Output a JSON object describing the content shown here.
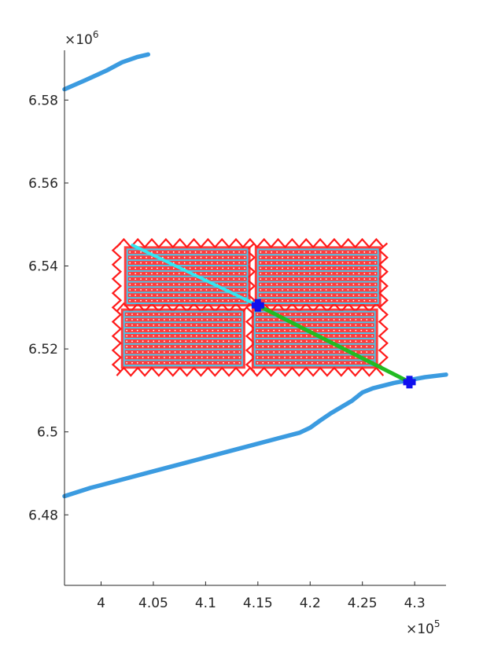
{
  "chart_data": {
    "type": "line",
    "title": "",
    "xlabel": "",
    "ylabel": "",
    "x_scale_label": "×10^5",
    "y_scale_label": "×10^6",
    "x_scale_base": "×10",
    "x_scale_exp": "5",
    "y_scale_base": "×10",
    "y_scale_exp": "6",
    "xlim": [
      3.965,
      4.33
    ],
    "ylim": [
      6.463,
      6.592
    ],
    "x_ticks": [
      4,
      4.05,
      4.1,
      4.15,
      4.2,
      4.25,
      4.3
    ],
    "x_tick_labels": [
      "4",
      "4.05",
      "4.1",
      "4.15",
      "4.2",
      "4.25",
      "4.3"
    ],
    "y_ticks": [
      6.48,
      6.5,
      6.52,
      6.54,
      6.56,
      6.58
    ],
    "y_tick_labels": [
      "6.48",
      "6.5",
      "6.52",
      "6.54",
      "6.56",
      "6.58"
    ],
    "grid": false,
    "colors": {
      "coastline": "#3b9be0",
      "boundary": "#ff1a1a",
      "field_lines": "#4fc3e6",
      "transit_cyan": "#33e6f0",
      "transit_green": "#22bb22",
      "marker": "#1010ee",
      "dots": "#ffffff"
    },
    "series": [
      {
        "role": "coastline-lower",
        "x": [
          3.965,
          3.99,
          4.02,
          4.05,
          4.08,
          4.11,
          4.14,
          4.17,
          4.19,
          4.2,
          4.21,
          4.22,
          4.24,
          4.25,
          4.26,
          4.28,
          4.295,
          4.31,
          4.33
        ],
        "y": [
          6.4845,
          6.4865,
          6.4885,
          6.4905,
          6.4925,
          6.4945,
          6.4965,
          6.4985,
          6.4998,
          6.501,
          6.5028,
          6.5045,
          6.5075,
          6.5095,
          6.5105,
          6.5118,
          6.5125,
          6.5132,
          6.5138
        ]
      },
      {
        "role": "coastline-upper",
        "x": [
          3.965,
          3.985,
          4.005,
          4.02,
          4.035,
          4.045
        ],
        "y": [
          6.5826,
          6.5848,
          6.5871,
          6.5891,
          6.5904,
          6.591
        ]
      },
      {
        "role": "transit-cyan",
        "x": [
          4.03,
          4.15
        ],
        "y": [
          6.545,
          6.5305
        ]
      },
      {
        "role": "transit-green",
        "x": [
          4.15,
          4.295
        ],
        "y": [
          6.5305,
          6.512
        ]
      }
    ],
    "fields": [
      {
        "x0": 4.025,
        "x1": 4.14,
        "y0": 6.531,
        "y1": 6.544,
        "lines": 11
      },
      {
        "x0": 4.022,
        "x1": 4.135,
        "y0": 6.516,
        "y1": 6.529,
        "lines": 11
      },
      {
        "x0": 4.15,
        "x1": 4.265,
        "y0": 6.531,
        "y1": 6.544,
        "lines": 11
      },
      {
        "x0": 4.147,
        "x1": 4.262,
        "y0": 6.516,
        "y1": 6.529,
        "lines": 11
      }
    ],
    "boundary_rect": {
      "x0": 4.015,
      "x1": 4.27,
      "y0": 6.5145,
      "y1": 6.5455
    },
    "boundary_divider_x": 4.143,
    "markers": [
      {
        "x": 4.15,
        "y": 6.5305
      },
      {
        "x": 4.295,
        "y": 6.512
      }
    ]
  }
}
